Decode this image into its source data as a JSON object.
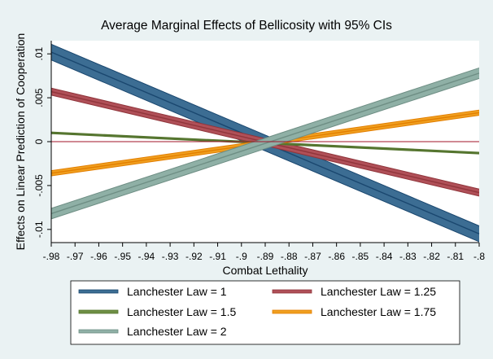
{
  "chart_data": {
    "type": "line",
    "title": "Average Marginal Effects of Bellicosity with 95% CIs",
    "xlabel": "Combat Lethality",
    "ylabel": "Effects on Linear Prediction of Cooperation",
    "xlim": [
      -0.98,
      -0.8
    ],
    "ylim": [
      -0.0115,
      0.0115
    ],
    "x_ticks": [
      {
        "value": -0.98,
        "label": "-.98"
      },
      {
        "value": -0.97,
        "label": "-.97"
      },
      {
        "value": -0.96,
        "label": "-.96"
      },
      {
        "value": -0.95,
        "label": "-.95"
      },
      {
        "value": -0.94,
        "label": "-.94"
      },
      {
        "value": -0.93,
        "label": "-.93"
      },
      {
        "value": -0.92,
        "label": "-.92"
      },
      {
        "value": -0.91,
        "label": "-.91"
      },
      {
        "value": -0.9,
        "label": "-.9"
      },
      {
        "value": -0.89,
        "label": "-.89"
      },
      {
        "value": -0.88,
        "label": "-.88"
      },
      {
        "value": -0.87,
        "label": "-.87"
      },
      {
        "value": -0.86,
        "label": "-.86"
      },
      {
        "value": -0.85,
        "label": "-.85"
      },
      {
        "value": -0.84,
        "label": "-.84"
      },
      {
        "value": -0.83,
        "label": "-.83"
      },
      {
        "value": -0.82,
        "label": "-.82"
      },
      {
        "value": -0.81,
        "label": "-.81"
      },
      {
        "value": -0.8,
        "label": "-.8"
      }
    ],
    "y_ticks": [
      {
        "value": 0.01,
        "label": ".01"
      },
      {
        "value": 0.005,
        "label": ".005"
      },
      {
        "value": 0,
        "label": "0"
      },
      {
        "value": -0.005,
        "label": "-.005"
      },
      {
        "value": -0.01,
        "label": "-.01"
      }
    ],
    "reference_line_y": 0,
    "reference_line_color": "#a0152a",
    "grid": false,
    "legend_position": "bottom",
    "x": [
      -0.98,
      -0.8
    ],
    "series": [
      {
        "name": "Lanchester Law = 1",
        "color": "#1a476f",
        "fill": "#3c6d93",
        "estimate": [
          0.0102,
          -0.0105
        ],
        "lower": [
          0.0093,
          -0.0114
        ],
        "upper": [
          0.0111,
          -0.0096
        ]
      },
      {
        "name": "Lanchester Law = 1.25",
        "color": "#90353b",
        "fill": "#b05058",
        "estimate": [
          0.0057,
          -0.0058
        ],
        "lower": [
          0.0053,
          -0.0062
        ],
        "upper": [
          0.0061,
          -0.0054
        ]
      },
      {
        "name": "Lanchester Law = 1.5",
        "color": "#55752f",
        "fill": "#6e8f45",
        "estimate": [
          0.001,
          -0.0013
        ],
        "lower": [
          0.0009,
          -0.0014
        ],
        "upper": [
          0.0011,
          -0.0012
        ]
      },
      {
        "name": "Lanchester Law = 1.75",
        "color": "#e37e00",
        "fill": "#f0a020",
        "estimate": [
          -0.0036,
          0.0033
        ],
        "lower": [
          -0.0039,
          0.003
        ],
        "upper": [
          -0.0033,
          0.0036
        ]
      },
      {
        "name": "Lanchester Law = 2",
        "color": "#6e8e84",
        "fill": "#8fb0a6",
        "estimate": [
          -0.0082,
          0.0078
        ],
        "lower": [
          -0.0088,
          0.0072
        ],
        "upper": [
          -0.0076,
          0.0084
        ]
      }
    ]
  }
}
